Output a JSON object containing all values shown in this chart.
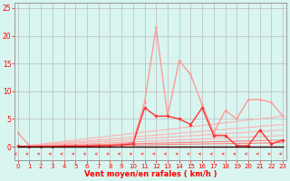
{
  "x": [
    0,
    1,
    2,
    3,
    4,
    5,
    6,
    7,
    8,
    9,
    10,
    11,
    12,
    13,
    14,
    15,
    16,
    17,
    18,
    19,
    20,
    21,
    22,
    23
  ],
  "line1_y": [
    2.5,
    0.2,
    0.1,
    0.1,
    0.1,
    0.2,
    0.2,
    0.3,
    0.4,
    0.5,
    0.8,
    8.0,
    21.5,
    5.5,
    15.5,
    13.0,
    7.5,
    2.5,
    6.5,
    5.0,
    8.5,
    8.5,
    8.0,
    5.5
  ],
  "line2_y": [
    0.1,
    0.0,
    0.0,
    0.0,
    0.1,
    0.1,
    0.1,
    0.2,
    0.2,
    0.3,
    0.5,
    7.0,
    5.5,
    5.5,
    5.0,
    4.0,
    7.0,
    2.0,
    2.0,
    0.2,
    0.2,
    3.0,
    0.5,
    1.2
  ],
  "line3_y": [
    0.0,
    0.0,
    0.0,
    0.0,
    0.0,
    0.0,
    0.0,
    0.0,
    0.0,
    0.0,
    0.0,
    0.0,
    0.0,
    0.0,
    0.0,
    0.0,
    0.0,
    0.0,
    0.0,
    0.0,
    0.0,
    0.0,
    0.0,
    0.0
  ],
  "trends": [
    {
      "x": [
        0,
        23
      ],
      "y": [
        0.0,
        5.5
      ],
      "color": "#FFB0B0"
    },
    {
      "x": [
        0,
        23
      ],
      "y": [
        0.0,
        4.0
      ],
      "color": "#FFB0B0"
    },
    {
      "x": [
        0,
        23
      ],
      "y": [
        0.0,
        3.0
      ],
      "color": "#FFB0B0"
    },
    {
      "x": [
        0,
        23
      ],
      "y": [
        0.0,
        2.0
      ],
      "color": "#FFB0B0"
    },
    {
      "x": [
        0,
        23
      ],
      "y": [
        0.0,
        1.2
      ],
      "color": "#FF8080"
    },
    {
      "x": [
        0,
        23
      ],
      "y": [
        0.0,
        0.7
      ],
      "color": "#FF8080"
    }
  ],
  "color_line1": "#FF9999",
  "color_line2": "#FF3333",
  "color_line3": "#330000",
  "bg_color": "#D8F5F0",
  "grid_color": "#BBBBBB",
  "xlabel": "Vent moyen/en rafales ( km/h )",
  "yticks": [
    0,
    5,
    10,
    15,
    20,
    25
  ],
  "xticks": [
    0,
    1,
    2,
    3,
    4,
    5,
    6,
    7,
    8,
    9,
    10,
    11,
    12,
    13,
    14,
    15,
    16,
    17,
    18,
    19,
    20,
    21,
    22,
    23
  ],
  "ylim": [
    -2.5,
    26
  ],
  "xlim": [
    -0.3,
    23.3
  ]
}
